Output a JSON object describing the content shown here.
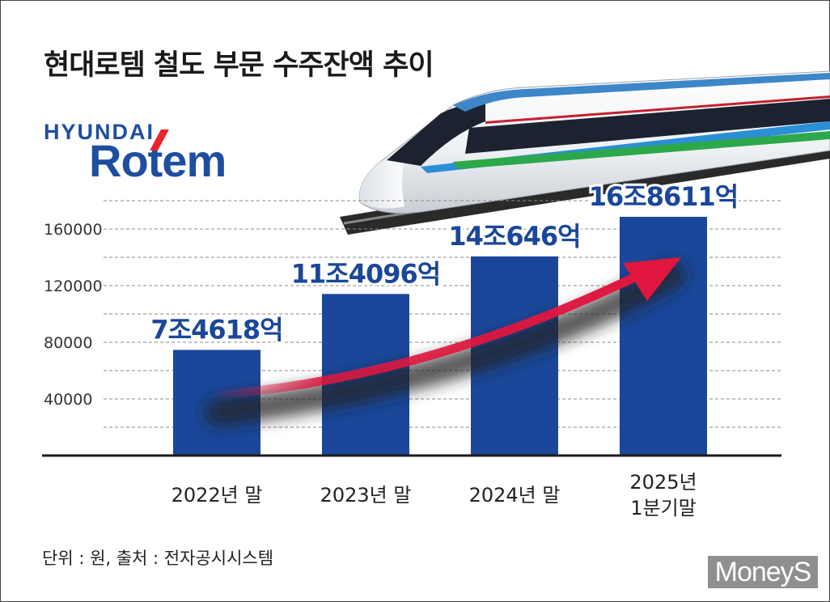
{
  "header": {
    "title": "현대로템 철도 부문 수주잔액 추이"
  },
  "logo": {
    "top": "HYUNDAI",
    "main": "Rotem"
  },
  "chart_data": {
    "type": "bar",
    "title": "현대로템 철도 부문 수주잔액 추이",
    "categories": [
      "2022년 말",
      "2023년 말",
      "2024년 말",
      "2025년 1분기말"
    ],
    "category_lines": [
      [
        "2022년 말"
      ],
      [
        "2023년 말"
      ],
      [
        "2024년 말"
      ],
      [
        "2025년",
        "1분기말"
      ]
    ],
    "values": [
      74618,
      114096,
      140646,
      168611
    ],
    "data_labels": [
      "7조4618억",
      "11조4096억",
      "14조646억",
      "16조8611억"
    ],
    "y_ticks": [
      40000,
      80000,
      120000,
      160000
    ],
    "ylim": [
      0,
      160000
    ],
    "grid": true,
    "bar_color": "#1a4799",
    "label_color": "#1a4799",
    "trend_arrow_color": "#e0163f"
  },
  "footer": {
    "source": "단위 : 원, 출처 : 전자공시시스템"
  },
  "watermark": "MoneyS"
}
